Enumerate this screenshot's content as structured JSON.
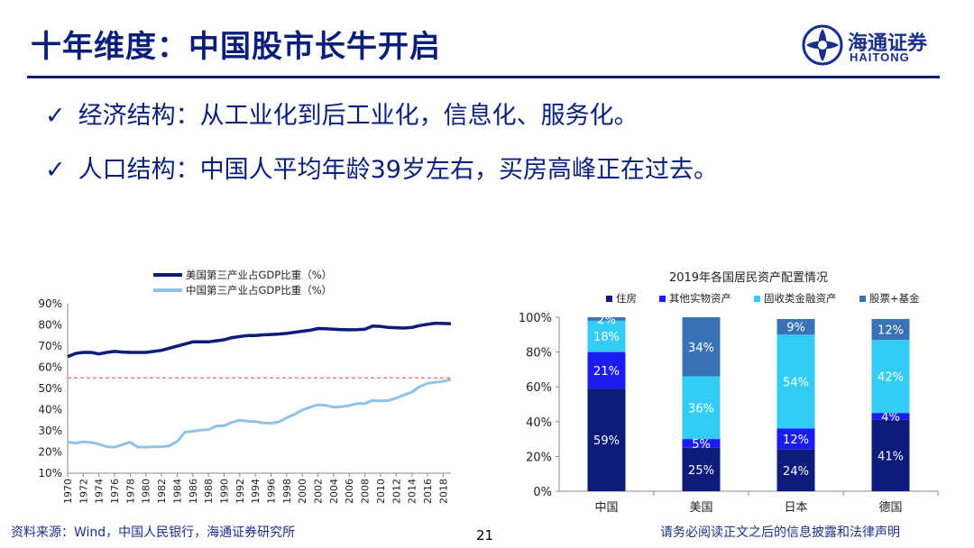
{
  "header": {
    "title": "十年维度：中国股市长牛开启",
    "logo_cn": "海通证券",
    "logo_en": "HAITONG",
    "logo_icon": "haitong-logo-icon"
  },
  "bullets": [
    {
      "check": "✓",
      "text": "经济结构：从工业化到后工业化，信息化、服务化。"
    },
    {
      "check": "✓",
      "text": "人口结构：中国人平均年龄39岁左右，买房高峰正在过去。"
    }
  ],
  "chart_data": [
    {
      "type": "line",
      "title": "",
      "xlabel": "",
      "ylabel": "",
      "legend_placement": "top-left",
      "ylim": [
        10,
        90
      ],
      "yticks": [
        "10%",
        "20%",
        "30%",
        "40%",
        "50%",
        "60%",
        "70%",
        "80%",
        "90%"
      ],
      "xticks": [
        "1970",
        "1972",
        "1974",
        "1976",
        "1978",
        "1980",
        "1982",
        "1984",
        "1986",
        "1988",
        "1990",
        "1992",
        "1994",
        "1996",
        "1998",
        "2000",
        "2002",
        "2004",
        "2006",
        "2008",
        "2010",
        "2012",
        "2014",
        "2016",
        "2018"
      ],
      "reference_line": {
        "y": 55,
        "color": "#e04a4a",
        "style": "dashed"
      },
      "x": [
        1970,
        1971,
        1972,
        1973,
        1974,
        1975,
        1976,
        1977,
        1978,
        1979,
        1980,
        1981,
        1982,
        1983,
        1984,
        1985,
        1986,
        1987,
        1988,
        1989,
        1990,
        1991,
        1992,
        1993,
        1994,
        1995,
        1996,
        1997,
        1998,
        1999,
        2000,
        2001,
        2002,
        2003,
        2004,
        2005,
        2006,
        2007,
        2008,
        2009,
        2010,
        2011,
        2012,
        2013,
        2014,
        2015,
        2016,
        2017,
        2018,
        2019
      ],
      "series": [
        {
          "name": "美国第三产业占GDP比重（%）",
          "color": "#0d1b7a",
          "values": [
            65,
            66.5,
            67,
            67,
            66.3,
            67,
            67.5,
            67.2,
            67,
            67,
            67,
            67.5,
            68,
            69,
            70,
            71,
            72,
            72,
            72,
            72.5,
            73,
            74,
            74.5,
            75,
            75,
            75.3,
            75.5,
            75.7,
            76,
            76.5,
            77,
            77.5,
            78.3,
            78.2,
            78,
            77.8,
            77.7,
            77.8,
            78,
            79.5,
            79.3,
            78.8,
            78.7,
            78.5,
            78.8,
            79.7,
            80.3,
            80.8,
            80.7,
            80.6
          ]
        },
        {
          "name": "中国第三产业占GDP比重（%）",
          "color": "#8fc3e6",
          "values": [
            24.7,
            24.2,
            24.8,
            24.5,
            23.7,
            22.5,
            22.3,
            23.5,
            24.6,
            22.3,
            22.3,
            22.5,
            22.5,
            22.9,
            25,
            29.4,
            29.8,
            30.3,
            30.5,
            32.2,
            32.4,
            34,
            35,
            34.5,
            34.4,
            33.7,
            33.6,
            34.2,
            36.2,
            37.8,
            39.8,
            41.2,
            42.3,
            42,
            41.2,
            41.4,
            41.9,
            42.9,
            42.9,
            44.4,
            44.1,
            44.3,
            45.5,
            46.9,
            48.3,
            50.8,
            52.4,
            52.9,
            53.3,
            54.3
          ]
        }
      ]
    },
    {
      "type": "bar",
      "stacked": true,
      "title": "2019年各国居民资产配置情况",
      "xlabel": "",
      "ylabel": "",
      "legend_placement": "top",
      "ylim": [
        0,
        100
      ],
      "yticks": [
        "0%",
        "20%",
        "40%",
        "60%",
        "80%",
        "100%"
      ],
      "categories": [
        "中国",
        "美国",
        "日本",
        "德国"
      ],
      "series": [
        {
          "name": "住房",
          "color": "#0d1b7a",
          "values": [
            59,
            25,
            24,
            41
          ],
          "labels": [
            "59%",
            "25%",
            "24%",
            "41%"
          ]
        },
        {
          "name": "其他实物资产",
          "color": "#1c1cf2",
          "values": [
            21,
            5,
            12,
            4
          ],
          "labels": [
            "21%",
            "5%",
            "12%",
            "4%"
          ]
        },
        {
          "name": "固收类金融资产",
          "color": "#33ccf5",
          "values": [
            18,
            36,
            54,
            42
          ],
          "labels": [
            "18%",
            "36%",
            "54%",
            "42%"
          ]
        },
        {
          "name": "股票+基金",
          "color": "#3a73b5",
          "values": [
            2,
            34,
            9,
            12
          ],
          "labels": [
            "2%",
            "34%",
            "9%",
            "12%"
          ]
        }
      ]
    }
  ],
  "footer": {
    "source": "资料来源：Wind，中国人民银行，海通证券研究所",
    "page": "21",
    "disclaimer": "请务必阅读正文之后的信息披露和法律声明"
  }
}
